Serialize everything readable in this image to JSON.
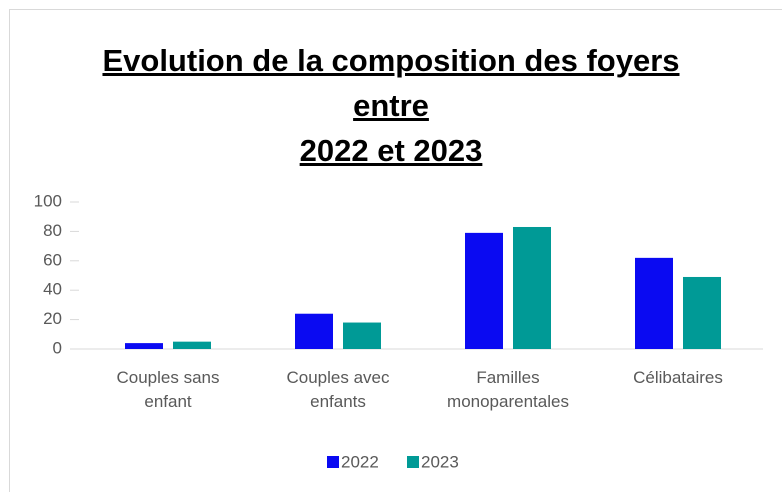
{
  "chart_data": {
    "type": "bar",
    "title": "Evolution de la composition des foyers\nentre\n2022 et 2023",
    "categories": [
      "Couples sans enfant",
      "Couples avec enfants",
      "Familles monoparentales",
      "Célibataires"
    ],
    "series": [
      {
        "name": "2022",
        "color": "#0a0af2",
        "values": [
          4,
          24,
          79,
          62
        ]
      },
      {
        "name": "2023",
        "color": "#009a96",
        "values": [
          5,
          18,
          83,
          49
        ]
      }
    ],
    "ylim": [
      0,
      100
    ],
    "yticks": [
      0,
      20,
      40,
      60,
      80,
      100
    ],
    "grid": false,
    "legend": "bottom"
  }
}
